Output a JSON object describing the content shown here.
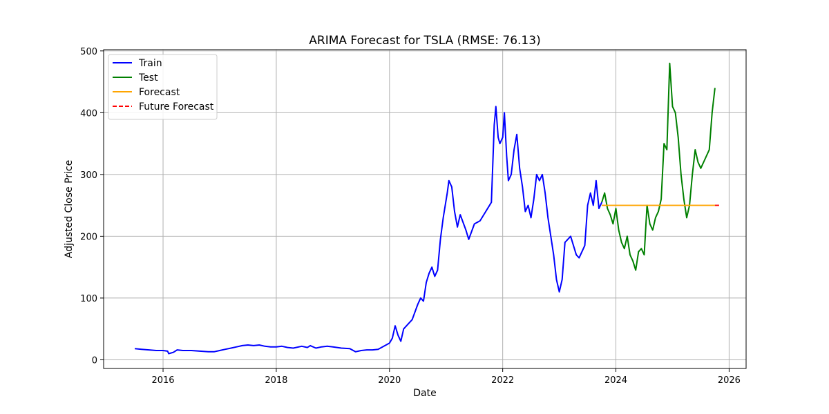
{
  "chart_data": {
    "type": "line",
    "title": "ARIMA Forecast for TSLA (RMSE: 76.13)",
    "xlabel": "Date",
    "ylabel": "Adjusted Close Price",
    "xlim": [
      2014.95,
      2026.3
    ],
    "ylim": [
      -14,
      502
    ],
    "xticks": [
      2016,
      2018,
      2020,
      2022,
      2024,
      2026
    ],
    "xtick_labels": [
      "2016",
      "2018",
      "2020",
      "2022",
      "2024",
      "2026"
    ],
    "yticks": [
      0,
      100,
      200,
      300,
      400,
      500
    ],
    "ytick_labels": [
      "0",
      "100",
      "200",
      "300",
      "400",
      "500"
    ],
    "grid": true,
    "legend_position": "top-left",
    "series": [
      {
        "name": "Train",
        "color": "#0000ff",
        "style": "solid",
        "points": [
          [
            2015.5,
            18
          ],
          [
            2015.62,
            17
          ],
          [
            2015.75,
            16
          ],
          [
            2015.88,
            15
          ],
          [
            2016.0,
            15
          ],
          [
            2016.08,
            14
          ],
          [
            2016.1,
            10
          ],
          [
            2016.18,
            12
          ],
          [
            2016.25,
            16
          ],
          [
            2016.35,
            15
          ],
          [
            2016.5,
            15
          ],
          [
            2016.65,
            14
          ],
          [
            2016.8,
            13
          ],
          [
            2016.9,
            13
          ],
          [
            2017.0,
            15
          ],
          [
            2017.1,
            17
          ],
          [
            2017.2,
            19
          ],
          [
            2017.3,
            21
          ],
          [
            2017.4,
            23
          ],
          [
            2017.5,
            24
          ],
          [
            2017.6,
            23
          ],
          [
            2017.7,
            24
          ],
          [
            2017.8,
            22
          ],
          [
            2017.9,
            21
          ],
          [
            2018.0,
            21
          ],
          [
            2018.1,
            22
          ],
          [
            2018.2,
            20
          ],
          [
            2018.3,
            19
          ],
          [
            2018.45,
            22
          ],
          [
            2018.55,
            20
          ],
          [
            2018.6,
            23
          ],
          [
            2018.7,
            19
          ],
          [
            2018.8,
            21
          ],
          [
            2018.9,
            22
          ],
          [
            2019.0,
            21
          ],
          [
            2019.15,
            19
          ],
          [
            2019.3,
            18
          ],
          [
            2019.4,
            13
          ],
          [
            2019.5,
            15
          ],
          [
            2019.6,
            16
          ],
          [
            2019.7,
            16
          ],
          [
            2019.8,
            17
          ],
          [
            2019.9,
            22
          ],
          [
            2020.0,
            27
          ],
          [
            2020.05,
            35
          ],
          [
            2020.1,
            55
          ],
          [
            2020.15,
            40
          ],
          [
            2020.2,
            30
          ],
          [
            2020.25,
            50
          ],
          [
            2020.3,
            55
          ],
          [
            2020.4,
            65
          ],
          [
            2020.5,
            90
          ],
          [
            2020.55,
            100
          ],
          [
            2020.6,
            95
          ],
          [
            2020.65,
            125
          ],
          [
            2020.7,
            140
          ],
          [
            2020.75,
            150
          ],
          [
            2020.8,
            135
          ],
          [
            2020.85,
            145
          ],
          [
            2020.9,
            195
          ],
          [
            2020.95,
            230
          ],
          [
            2021.02,
            270
          ],
          [
            2021.05,
            290
          ],
          [
            2021.1,
            280
          ],
          [
            2021.15,
            240
          ],
          [
            2021.2,
            215
          ],
          [
            2021.25,
            235
          ],
          [
            2021.35,
            210
          ],
          [
            2021.4,
            195
          ],
          [
            2021.5,
            220
          ],
          [
            2021.6,
            225
          ],
          [
            2021.7,
            240
          ],
          [
            2021.8,
            255
          ],
          [
            2021.85,
            380
          ],
          [
            2021.88,
            410
          ],
          [
            2021.92,
            360
          ],
          [
            2021.95,
            350
          ],
          [
            2022.0,
            360
          ],
          [
            2022.03,
            400
          ],
          [
            2022.07,
            330
          ],
          [
            2022.1,
            290
          ],
          [
            2022.15,
            300
          ],
          [
            2022.2,
            340
          ],
          [
            2022.25,
            365
          ],
          [
            2022.3,
            310
          ],
          [
            2022.35,
            280
          ],
          [
            2022.4,
            240
          ],
          [
            2022.45,
            250
          ],
          [
            2022.5,
            230
          ],
          [
            2022.55,
            260
          ],
          [
            2022.6,
            300
          ],
          [
            2022.65,
            290
          ],
          [
            2022.7,
            300
          ],
          [
            2022.75,
            270
          ],
          [
            2022.8,
            230
          ],
          [
            2022.85,
            200
          ],
          [
            2022.9,
            170
          ],
          [
            2022.95,
            130
          ],
          [
            2023.0,
            110
          ],
          [
            2023.05,
            130
          ],
          [
            2023.1,
            190
          ],
          [
            2023.2,
            200
          ],
          [
            2023.3,
            170
          ],
          [
            2023.35,
            165
          ],
          [
            2023.45,
            185
          ],
          [
            2023.5,
            250
          ],
          [
            2023.55,
            270
          ],
          [
            2023.6,
            250
          ],
          [
            2023.65,
            290
          ],
          [
            2023.7,
            245
          ],
          [
            2023.75,
            255
          ]
        ]
      },
      {
        "name": "Test",
        "color": "#008000",
        "style": "solid",
        "points": [
          [
            2023.75,
            255
          ],
          [
            2023.8,
            270
          ],
          [
            2023.85,
            245
          ],
          [
            2023.9,
            235
          ],
          [
            2023.95,
            220
          ],
          [
            2024.0,
            245
          ],
          [
            2024.05,
            210
          ],
          [
            2024.1,
            190
          ],
          [
            2024.15,
            180
          ],
          [
            2024.2,
            200
          ],
          [
            2024.25,
            170
          ],
          [
            2024.3,
            160
          ],
          [
            2024.35,
            145
          ],
          [
            2024.4,
            175
          ],
          [
            2024.45,
            180
          ],
          [
            2024.5,
            170
          ],
          [
            2024.55,
            250
          ],
          [
            2024.6,
            220
          ],
          [
            2024.65,
            210
          ],
          [
            2024.7,
            230
          ],
          [
            2024.75,
            240
          ],
          [
            2024.8,
            260
          ],
          [
            2024.85,
            350
          ],
          [
            2024.9,
            340
          ],
          [
            2024.95,
            480
          ],
          [
            2025.0,
            410
          ],
          [
            2025.05,
            400
          ],
          [
            2025.1,
            360
          ],
          [
            2025.15,
            300
          ],
          [
            2025.2,
            260
          ],
          [
            2025.25,
            230
          ],
          [
            2025.3,
            250
          ],
          [
            2025.35,
            300
          ],
          [
            2025.4,
            340
          ],
          [
            2025.45,
            320
          ],
          [
            2025.5,
            310
          ],
          [
            2025.55,
            320
          ],
          [
            2025.6,
            330
          ],
          [
            2025.65,
            340
          ],
          [
            2025.7,
            400
          ],
          [
            2025.75,
            440
          ]
        ]
      },
      {
        "name": "Forecast",
        "color": "#ffa500",
        "style": "solid",
        "points": [
          [
            2023.75,
            250
          ],
          [
            2025.75,
            250
          ]
        ]
      },
      {
        "name": "Future Forecast",
        "color": "#ff0000",
        "style": "dashed",
        "points": [
          [
            2025.75,
            250
          ],
          [
            2025.85,
            250
          ]
        ]
      }
    ]
  }
}
